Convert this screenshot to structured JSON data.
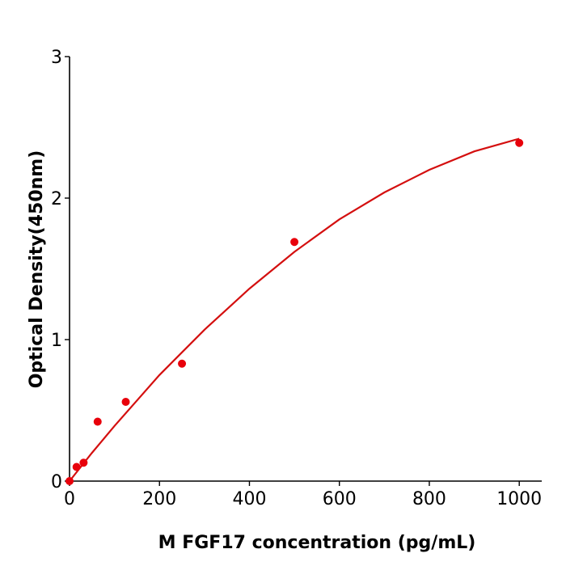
{
  "chart_data": {
    "type": "scatter",
    "title": "",
    "xlabel": "M  FGF17 concentration (pg/mL)",
    "ylabel": "Optical Density(450nm)",
    "xlim": [
      0,
      1050
    ],
    "ylim": [
      0,
      3
    ],
    "xticks": [
      0,
      200,
      400,
      600,
      800,
      1000
    ],
    "yticks": [
      0,
      1,
      2,
      3
    ],
    "grid": false,
    "points": {
      "x": [
        0,
        15.6,
        31.25,
        62.5,
        125,
        250,
        500,
        1000
      ],
      "y": [
        0.0,
        0.1,
        0.13,
        0.42,
        0.56,
        0.83,
        1.69,
        2.39
      ]
    },
    "fit_curve": {
      "x": [
        0,
        50,
        100,
        150,
        200,
        250,
        300,
        400,
        500,
        600,
        700,
        800,
        900,
        1000
      ],
      "y": [
        0,
        0.2,
        0.39,
        0.57,
        0.75,
        0.91,
        1.07,
        1.36,
        1.62,
        1.85,
        2.04,
        2.2,
        2.33,
        2.42
      ]
    },
    "colors": {
      "points": "#e8000b",
      "curve": "#d40f0f",
      "axes": "#000000"
    }
  }
}
